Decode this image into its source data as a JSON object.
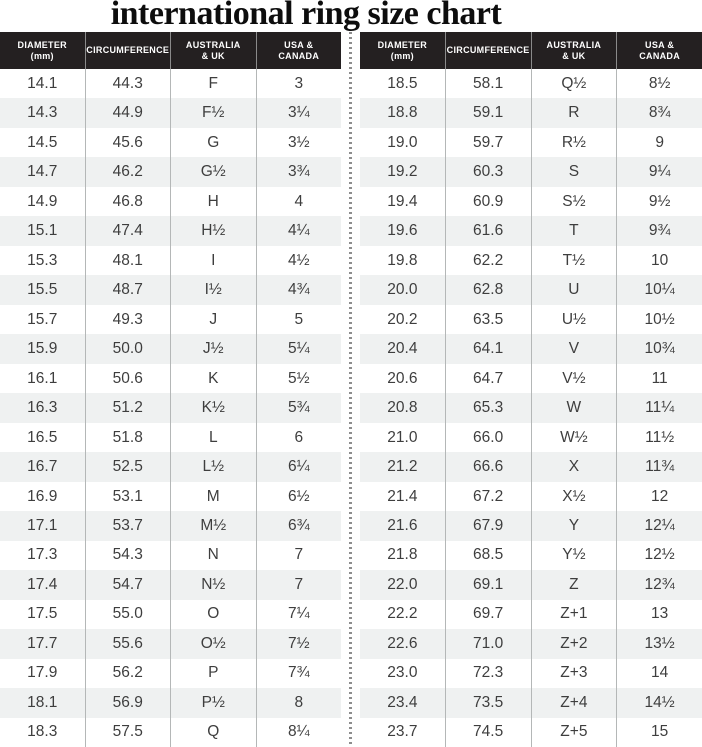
{
  "title": "international ring size chart",
  "colors": {
    "title_text": "#0d0d0d",
    "header_bg": "#242021",
    "header_text": "#ffffff",
    "header_separator": "#8a8a8a",
    "stripe": "#eff1f1",
    "cell_text": "#3e3e3e",
    "separator": "#b4b7b7",
    "divider_dots": "#8d8d8d"
  },
  "chart_data": {
    "type": "table",
    "title": "international ring size chart",
    "columns": [
      "DIAMETER (mm)",
      "CIRCUMFERENCE",
      "AUSTRALIA & UK",
      "USA & CANADA"
    ],
    "header_lines": [
      [
        "DIAMETER",
        "(mm)"
      ],
      [
        "CIRCUMFERENCE"
      ],
      [
        "AUSTRALIA",
        "& UK"
      ],
      [
        "USA &",
        "CANADA"
      ]
    ],
    "tables": [
      {
        "rows": [
          [
            "14.1",
            "44.3",
            "F",
            "3"
          ],
          [
            "14.3",
            "44.9",
            "F½",
            "3¼"
          ],
          [
            "14.5",
            "45.6",
            "G",
            "3½"
          ],
          [
            "14.7",
            "46.2",
            "G½",
            "3¾"
          ],
          [
            "14.9",
            "46.8",
            "H",
            "4"
          ],
          [
            "15.1",
            "47.4",
            "H½",
            "4¼"
          ],
          [
            "15.3",
            "48.1",
            "I",
            "4½"
          ],
          [
            "15.5",
            "48.7",
            "I½",
            "4¾"
          ],
          [
            "15.7",
            "49.3",
            "J",
            "5"
          ],
          [
            "15.9",
            "50.0",
            "J½",
            "5¼"
          ],
          [
            "16.1",
            "50.6",
            "K",
            "5½"
          ],
          [
            "16.3",
            "51.2",
            "K½",
            "5¾"
          ],
          [
            "16.5",
            "51.8",
            "L",
            "6"
          ],
          [
            "16.7",
            "52.5",
            "L½",
            "6¼"
          ],
          [
            "16.9",
            "53.1",
            "M",
            "6½"
          ],
          [
            "17.1",
            "53.7",
            "M½",
            "6¾"
          ],
          [
            "17.3",
            "54.3",
            "N",
            "7"
          ],
          [
            "17.4",
            "54.7",
            "N½",
            "7"
          ],
          [
            "17.5",
            "55.0",
            "O",
            "7¼"
          ],
          [
            "17.7",
            "55.6",
            "O½",
            "7½"
          ],
          [
            "17.9",
            "56.2",
            "P",
            "7¾"
          ],
          [
            "18.1",
            "56.9",
            "P½",
            "8"
          ],
          [
            "18.3",
            "57.5",
            "Q",
            "8¼"
          ]
        ]
      },
      {
        "rows": [
          [
            "18.5",
            "58.1",
            "Q½",
            "8½"
          ],
          [
            "18.8",
            "59.1",
            "R",
            "8¾"
          ],
          [
            "19.0",
            "59.7",
            "R½",
            "9"
          ],
          [
            "19.2",
            "60.3",
            "S",
            "9¼"
          ],
          [
            "19.4",
            "60.9",
            "S½",
            "9½"
          ],
          [
            "19.6",
            "61.6",
            "T",
            "9¾"
          ],
          [
            "19.8",
            "62.2",
            "T½",
            "10"
          ],
          [
            "20.0",
            "62.8",
            "U",
            "10¼"
          ],
          [
            "20.2",
            "63.5",
            "U½",
            "10½"
          ],
          [
            "20.4",
            "64.1",
            "V",
            "10¾"
          ],
          [
            "20.6",
            "64.7",
            "V½",
            "11"
          ],
          [
            "20.8",
            "65.3",
            "W",
            "11¼"
          ],
          [
            "21.0",
            "66.0",
            "W½",
            "11½"
          ],
          [
            "21.2",
            "66.6",
            "X",
            "11¾"
          ],
          [
            "21.4",
            "67.2",
            "X½",
            "12"
          ],
          [
            "21.6",
            "67.9",
            "Y",
            "12¼"
          ],
          [
            "21.8",
            "68.5",
            "Y½",
            "12½"
          ],
          [
            "22.0",
            "69.1",
            "Z",
            "12¾"
          ],
          [
            "22.2",
            "69.7",
            "Z+1",
            "13"
          ],
          [
            "22.6",
            "71.0",
            "Z+2",
            "13½"
          ],
          [
            "23.0",
            "72.3",
            "Z+3",
            "14"
          ],
          [
            "23.4",
            "73.5",
            "Z+4",
            "14½"
          ],
          [
            "23.7",
            "74.5",
            "Z+5",
            "15"
          ]
        ]
      }
    ]
  }
}
